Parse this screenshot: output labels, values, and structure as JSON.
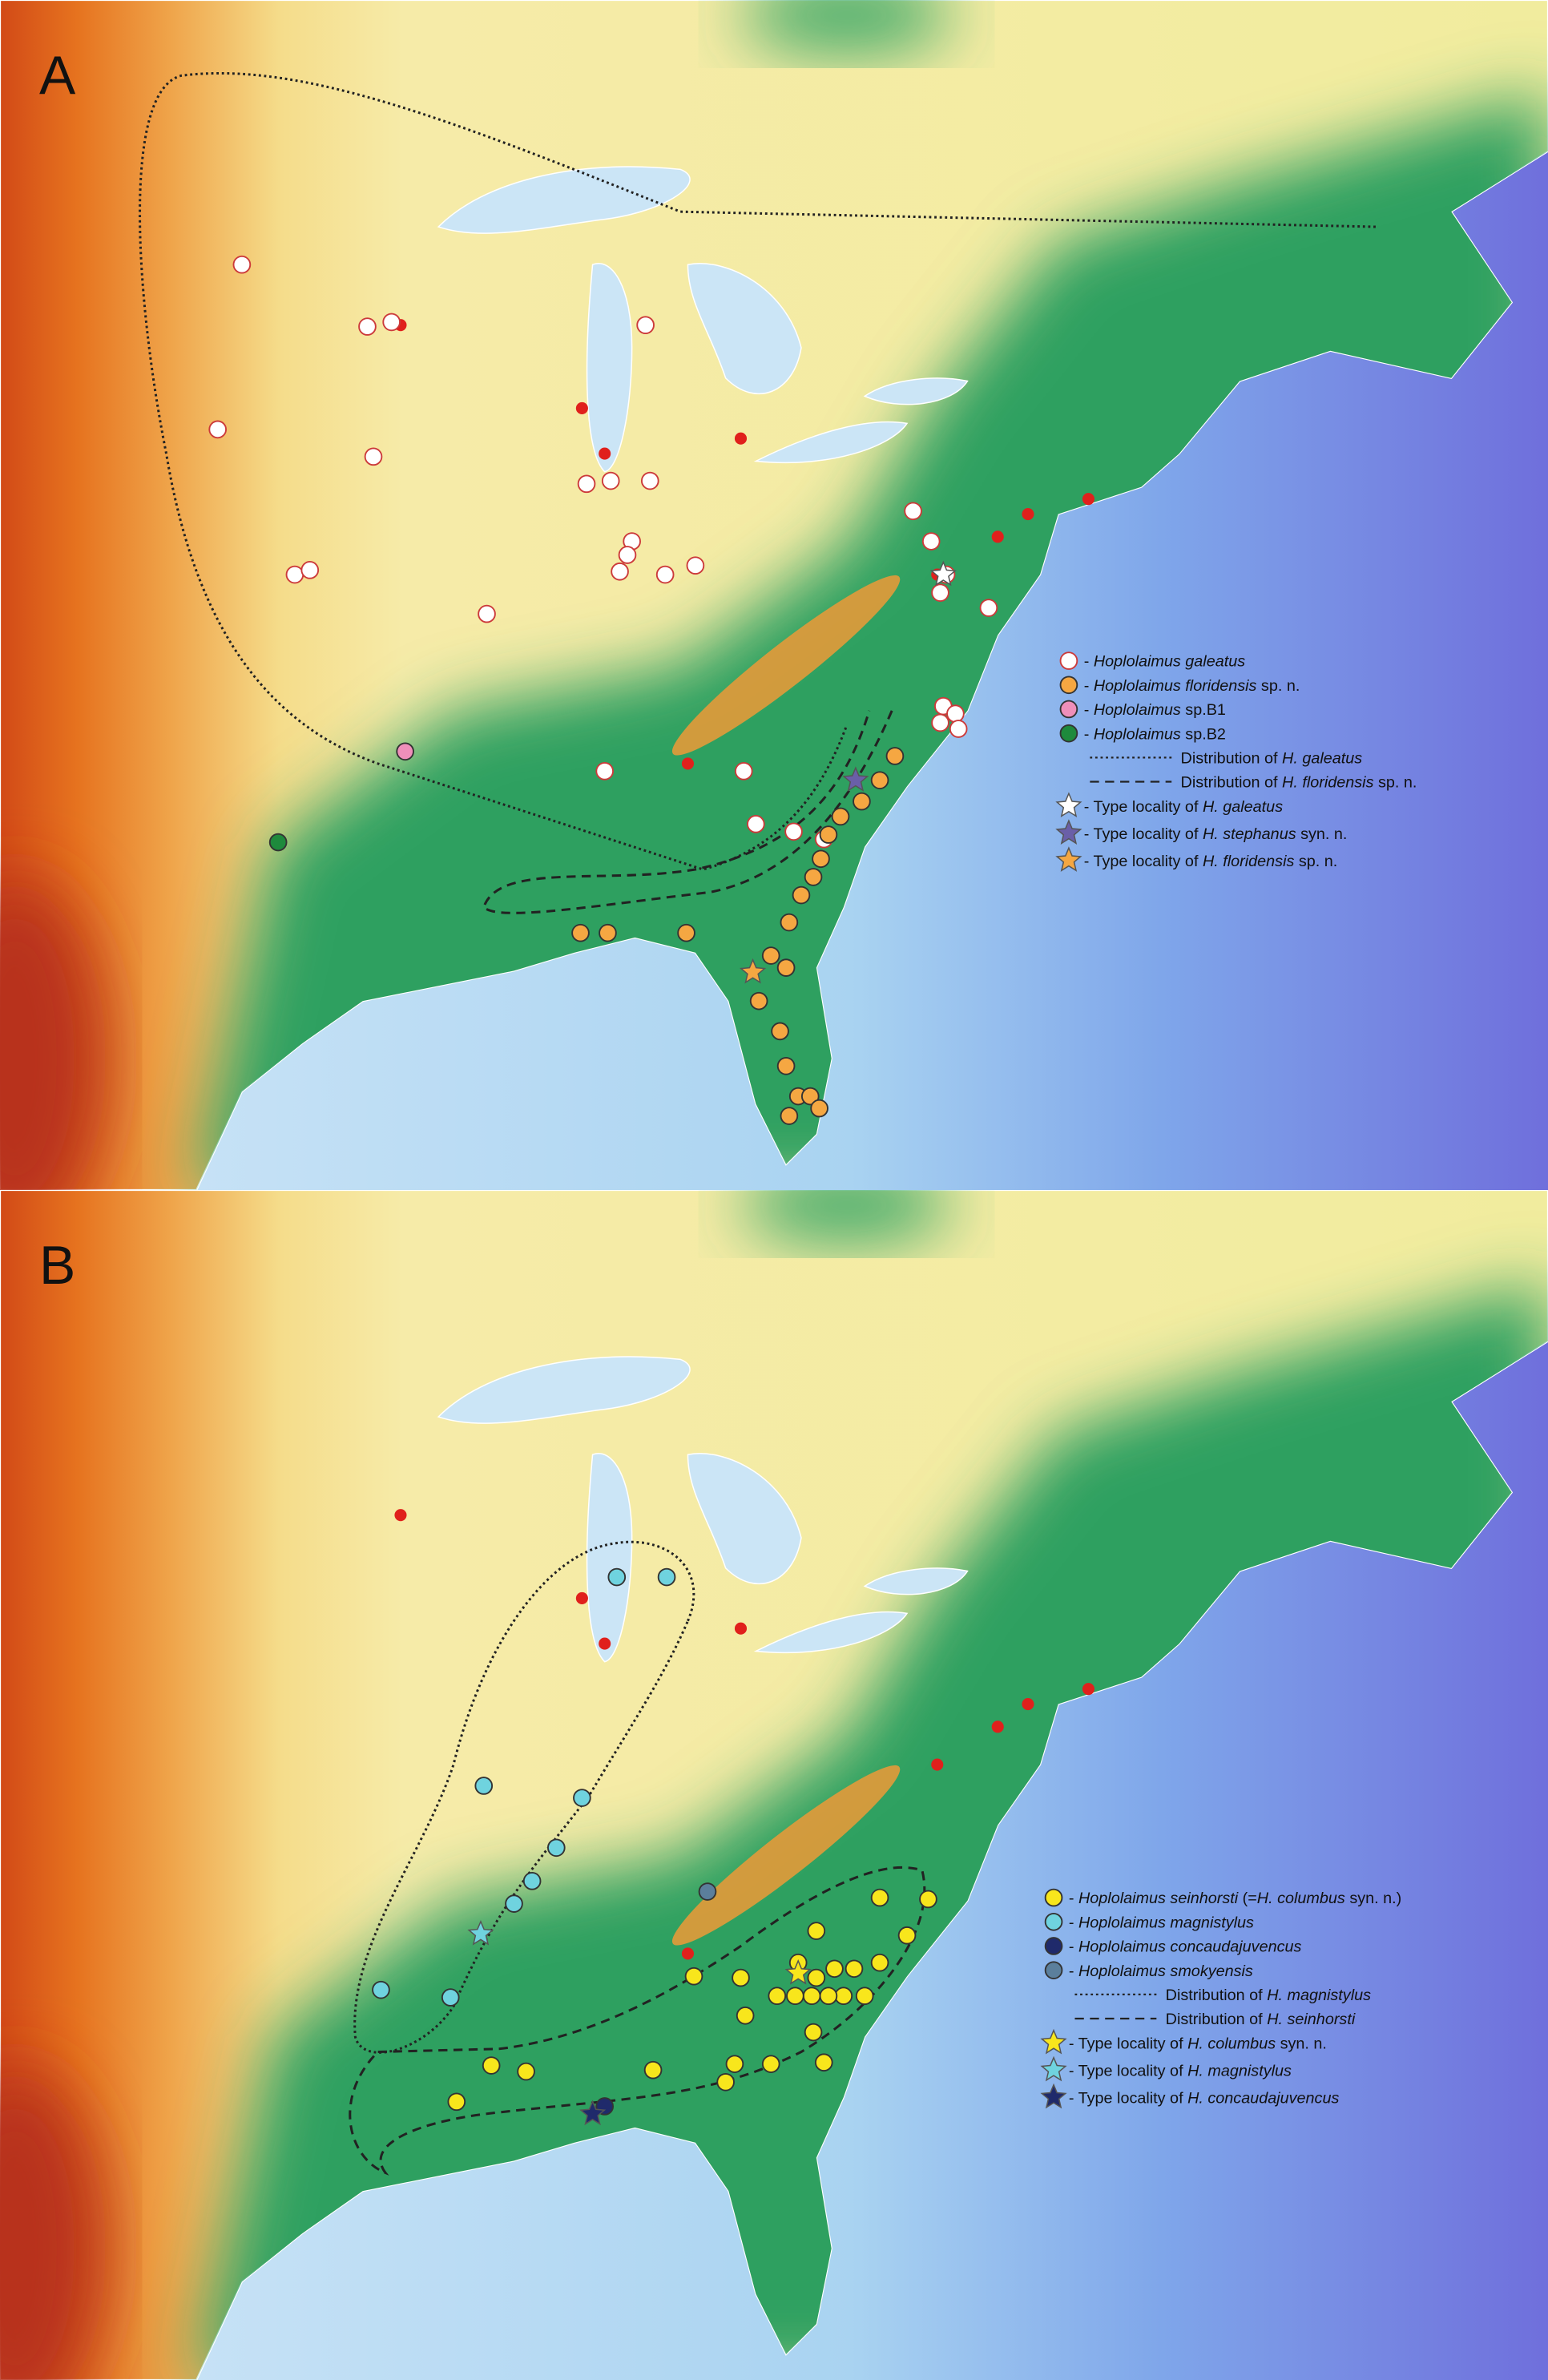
{
  "panels": [
    {
      "label": "A",
      "legend": [
        {
          "marker": "circle",
          "color": "#ffffff",
          "parts": [
            {
              "text": "- "
            },
            {
              "text": "Hoplolaimus galeatus",
              "italic": true
            }
          ]
        },
        {
          "marker": "circle",
          "color": "#f5a742",
          "parts": [
            {
              "text": "- "
            },
            {
              "text": "Hoplolaimus floridensis",
              "italic": true
            },
            {
              "text": " sp. n."
            }
          ]
        },
        {
          "marker": "circle",
          "color": "#ef8fba",
          "parts": [
            {
              "text": "- "
            },
            {
              "text": "Hoplolaimus",
              "italic": true
            },
            {
              "text": " sp.B1"
            }
          ]
        },
        {
          "marker": "circle",
          "color": "#1e8a3c",
          "parts": [
            {
              "text": "- "
            },
            {
              "text": "Hoplolaimus",
              "italic": true
            },
            {
              "text": " sp.B2"
            }
          ]
        },
        {
          "marker": "dotted",
          "color": "#222222",
          "parts": [
            {
              "text": "Distribution of "
            },
            {
              "text": "H. galeatus",
              "italic": true
            }
          ]
        },
        {
          "marker": "dashed",
          "color": "#222222",
          "parts": [
            {
              "text": "Distribution of "
            },
            {
              "text": "H. floridensis",
              "italic": true
            },
            {
              "text": " sp. n."
            }
          ]
        },
        {
          "marker": "star",
          "color": "#ffffff",
          "parts": [
            {
              "text": "- Type locality of "
            },
            {
              "text": "H. galeatus",
              "italic": true
            }
          ]
        },
        {
          "marker": "star",
          "color": "#6a5fa8",
          "parts": [
            {
              "text": "- Type locality of "
            },
            {
              "text": "H. stephanus",
              "italic": true
            },
            {
              "text": " syn. n."
            }
          ]
        },
        {
          "marker": "star",
          "color": "#f5a742",
          "parts": [
            {
              "text": "- Type locality of "
            },
            {
              "text": "H. floridensis",
              "italic": true
            },
            {
              "text": " sp. n."
            }
          ]
        }
      ]
    },
    {
      "label": "B",
      "legend": [
        {
          "marker": "circle",
          "color": "#f8e61c",
          "parts": [
            {
              "text": "- "
            },
            {
              "text": "Hoplolaimus seinhorsti",
              "italic": true
            },
            {
              "text": " (="
            },
            {
              "text": "H. columbus",
              "italic": true
            },
            {
              "text": " syn. n.)"
            }
          ]
        },
        {
          "marker": "circle",
          "color": "#6fd3df",
          "parts": [
            {
              "text": "- "
            },
            {
              "text": "Hoplolaimus magnistylus",
              "italic": true
            }
          ]
        },
        {
          "marker": "circle",
          "color": "#1f2a6b",
          "parts": [
            {
              "text": "- "
            },
            {
              "text": "Hoplolaimus concaudajuvencus",
              "italic": true
            }
          ]
        },
        {
          "marker": "circle",
          "color": "#5b7f9c",
          "parts": [
            {
              "text": "- "
            },
            {
              "text": "Hoplolaimus smokyensis",
              "italic": true
            }
          ]
        },
        {
          "marker": "dotted",
          "color": "#222222",
          "parts": [
            {
              "text": "Distribution of "
            },
            {
              "text": "H. magnistylus",
              "italic": true
            }
          ]
        },
        {
          "marker": "dashed",
          "color": "#222222",
          "parts": [
            {
              "text": "Distribution of "
            },
            {
              "text": "H. seinhorsti",
              "italic": true
            }
          ]
        },
        {
          "marker": "star",
          "color": "#f8e61c",
          "parts": [
            {
              "text": "- Type locality of "
            },
            {
              "text": "H. columbus",
              "italic": true
            },
            {
              "text": " syn. n."
            }
          ]
        },
        {
          "marker": "star",
          "color": "#6fd3df",
          "parts": [
            {
              "text": "- Type locality of "
            },
            {
              "text": "H. magnistylus",
              "italic": true
            }
          ]
        },
        {
          "marker": "star",
          "color": "#1f2a6b",
          "parts": [
            {
              "text": "- Type locality of "
            },
            {
              "text": "H. concaudajuvencus",
              "italic": true
            }
          ]
        }
      ]
    }
  ]
}
